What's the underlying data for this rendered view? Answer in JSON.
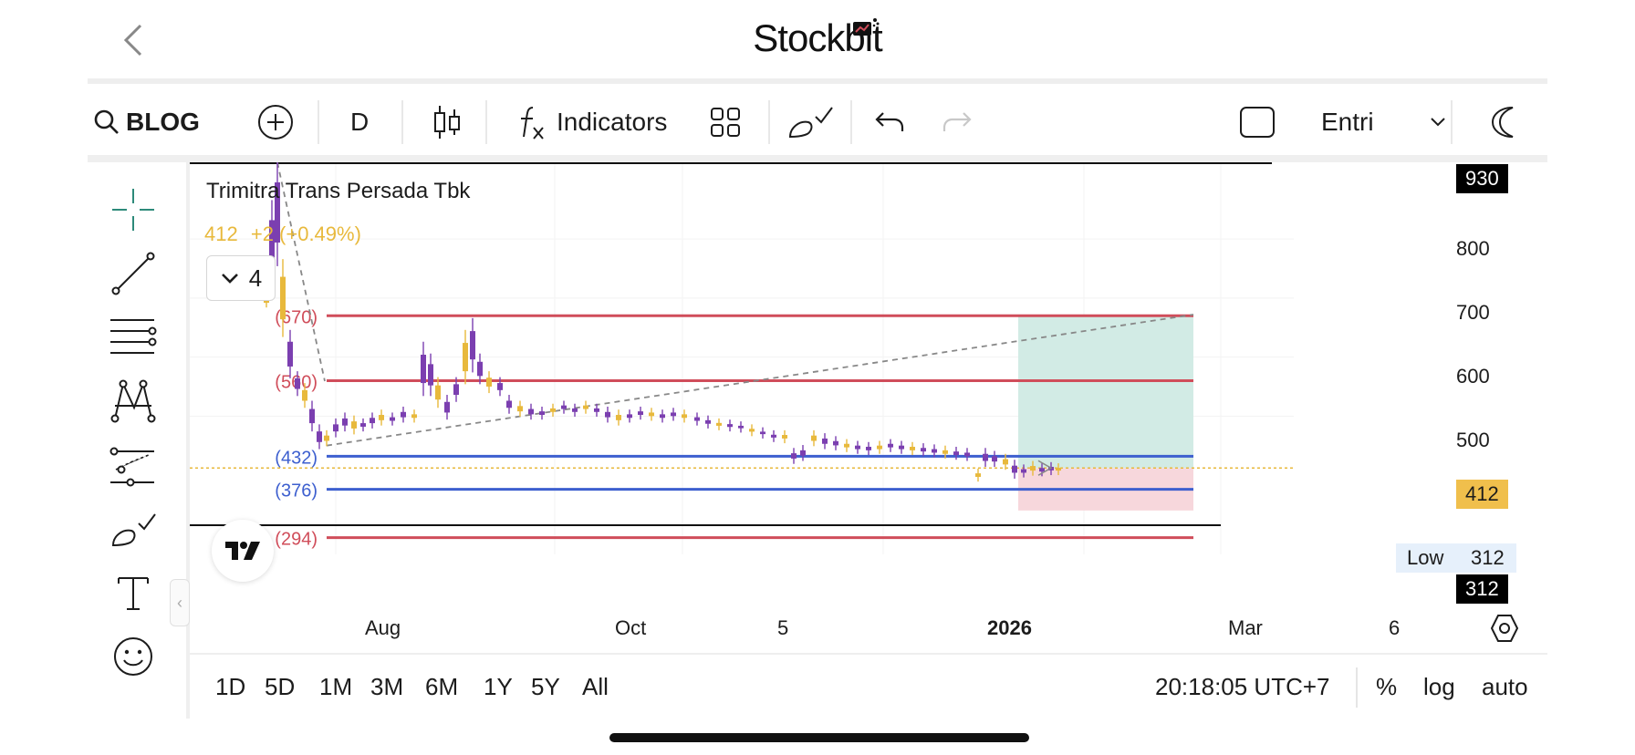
{
  "header": {
    "brand": "Stockbit"
  },
  "toolbar": {
    "symbol": "BLOG",
    "interval": "D",
    "indicators_label": "Indicators",
    "entry_select": "Entri"
  },
  "legend": {
    "title": "Trimitra Trans Persada Tbk",
    "price": "412",
    "change": "+2 (+0.49%)",
    "collapse_count": "4"
  },
  "chart_data": {
    "type": "candlestick",
    "y_ticks": [
      "930",
      "800",
      "700",
      "600",
      "500",
      "412",
      "312",
      "312"
    ],
    "y_range": [
      280,
      940
    ],
    "x_ticks": [
      "Aug",
      "Oct",
      "5",
      "2026",
      "Mar",
      "6"
    ],
    "low_label": "Low",
    "low_value": "312",
    "high_value": "930",
    "current_price": "412",
    "horizontal_levels": [
      {
        "label": "(670)",
        "value": 670,
        "color": "#d04d5a"
      },
      {
        "label": "(560)",
        "value": 560,
        "color": "#d04d5a"
      },
      {
        "label": "(432)",
        "value": 432,
        "color": "#3d5fcf"
      },
      {
        "label": "(376)",
        "value": 376,
        "color": "#3d5fcf"
      },
      {
        "label": "(294)",
        "value": 294,
        "color": "#d04d5a"
      }
    ],
    "colors": {
      "up": "#e8b93c",
      "down": "#7b3fb0",
      "current_line": "#e8b93c",
      "profit_zone": "#d2ebe5",
      "loss_zone": "#f7d7dc"
    }
  },
  "ranges": [
    "1D",
    "5D",
    "1M",
    "3M",
    "6M",
    "1Y",
    "5Y",
    "All"
  ],
  "status": {
    "time": "20:18:05 UTC+7",
    "percent": "%",
    "log": "log",
    "auto": "auto"
  },
  "icons": {
    "back": "chevron-left-icon",
    "search": "search-icon",
    "add": "plus-circle-icon",
    "candles": "candlestick-icon",
    "fx": "fx-icon",
    "layout": "grid-icon",
    "brush": "brush-icon",
    "undo": "undo-icon",
    "redo": "redo-icon",
    "fullscreen": "square-icon",
    "theme": "moon-icon",
    "settings": "hexagon-settings-icon"
  }
}
